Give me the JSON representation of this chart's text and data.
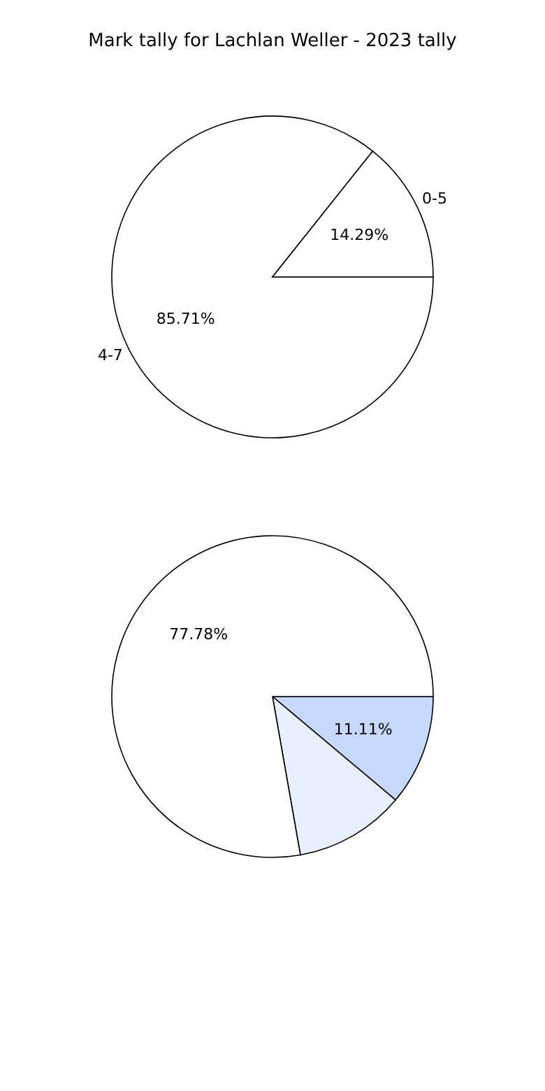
{
  "chart_data": [
    {
      "type": "pie",
      "title": "Mark tally for Lachlan Weller - 2023 tally",
      "categories": [
        "4-7",
        "0-5"
      ],
      "values": [
        85.71,
        14.29
      ],
      "colors": [
        "#ffffff",
        "#ffffff"
      ],
      "value_labels": [
        "85.71%",
        "14.29%"
      ]
    },
    {
      "type": "pie",
      "categories": [
        null,
        null,
        null
      ],
      "values": [
        11.11,
        11.11,
        77.78
      ],
      "colors": [
        "#c6d9fc",
        "#e8f0fe",
        "#ffffff"
      ],
      "value_labels": [
        "11.11%",
        null,
        "77.78%"
      ]
    }
  ]
}
